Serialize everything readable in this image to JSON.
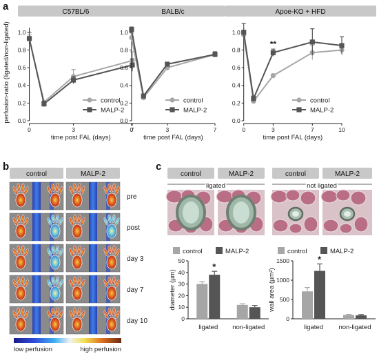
{
  "panel_a": {
    "letter": "a",
    "ylabel": "perfusion-ratio (ligated/non-ligated)",
    "xlabel": "time post FAL (days)",
    "legend": [
      "control",
      "MALP-2"
    ],
    "colors": {
      "control": "#a6a6a6",
      "malp": "#555555"
    }
  },
  "panel_b": {
    "letter": "b",
    "headers": [
      "control",
      "MALP-2"
    ],
    "rows": [
      "pre",
      "post",
      "day 3",
      "day 7",
      "day 10"
    ],
    "colorbar_low": "low perfusion",
    "colorbar_high": "high perfusion"
  },
  "panel_c": {
    "letter": "c",
    "headers": [
      "control",
      "MALP-2",
      "control",
      "MALP-2"
    ],
    "group_labels": [
      "ligated",
      "not ligated"
    ]
  },
  "chart_data": [
    {
      "type": "line",
      "title": "C57BL/6",
      "xlabel": "time post FAL (days)",
      "ylabel": "perfusion-ratio (ligated/non-ligated)",
      "x": [
        0,
        1,
        3,
        7
      ],
      "xticks": [
        0,
        3,
        7
      ],
      "xlim": [
        -0.4,
        7
      ],
      "ylim": [
        0,
        1.1
      ],
      "yticks": [
        "0.0",
        "0.2",
        "0.4",
        "0.6",
        "0.8",
        "1.0"
      ],
      "series": [
        {
          "name": "control",
          "values": [
            0.93,
            0.21,
            0.5,
            0.68
          ],
          "err": [
            0.04,
            0.02,
            0.08,
            0.1
          ]
        },
        {
          "name": "MALP-2",
          "values": [
            0.93,
            0.19,
            0.46,
            0.63
          ],
          "err": [
            0.07,
            0.03,
            0.04,
            0.07
          ]
        }
      ],
      "legend_position": "bottom-right"
    },
    {
      "type": "line",
      "title": "BALB/c",
      "xlabel": "time post FAL (days)",
      "x": [
        0,
        1,
        3,
        7
      ],
      "xticks": [
        0,
        3,
        7
      ],
      "xlim": [
        -0.4,
        7
      ],
      "ylim": [
        0,
        1.1
      ],
      "yticks": [
        "0.0",
        "0.2",
        "0.4",
        "0.6",
        "0.8",
        "1.0"
      ],
      "series": [
        {
          "name": "control",
          "values": [
            0.94,
            0.26,
            0.6,
            0.75
          ],
          "err": [
            0.05,
            0.02,
            0.03,
            0.03
          ]
        },
        {
          "name": "MALP-2",
          "values": [
            1.03,
            0.28,
            0.64,
            0.75
          ],
          "err": [
            0.03,
            0.02,
            0.02,
            0.03
          ]
        }
      ],
      "legend_position": "bottom-right"
    },
    {
      "type": "line",
      "title": "Apoe-KO + HFD",
      "xlabel": "time post FAL (days)",
      "x": [
        0,
        1,
        3,
        7,
        10
      ],
      "xticks": [
        0,
        3,
        7,
        10
      ],
      "xlim": [
        -0.4,
        10
      ],
      "ylim": [
        0,
        1.1
      ],
      "yticks": [
        "0.0",
        "0.2",
        "0.4",
        "0.6",
        "0.8",
        "1.0"
      ],
      "series": [
        {
          "name": "control",
          "values": [
            0.97,
            0.22,
            0.51,
            0.77,
            0.8
          ],
          "err": [
            0.05,
            0.02,
            0.02,
            0.08,
            0.05
          ]
        },
        {
          "name": "MALP-2",
          "values": [
            1.0,
            0.25,
            0.77,
            0.89,
            0.85
          ],
          "err": [
            0.1,
            0.03,
            0.04,
            0.15,
            0.1
          ]
        }
      ],
      "annotations": [
        {
          "x": 3,
          "text": "**"
        }
      ],
      "legend_position": "bottom-right"
    },
    {
      "type": "bar",
      "categories": [
        "ligated",
        "non-ligated"
      ],
      "ylabel": "diameter (µm)",
      "ylim": [
        0,
        50
      ],
      "yticks": [
        "0",
        "10",
        "20",
        "30",
        "40",
        "50"
      ],
      "series": [
        {
          "name": "control",
          "values": [
            30,
            12
          ],
          "err": [
            2,
            1
          ]
        },
        {
          "name": "MALP-2",
          "values": [
            38,
            10
          ],
          "err": [
            3,
            1.5
          ]
        }
      ],
      "annotations": [
        {
          "category": "ligated",
          "text": "*"
        }
      ],
      "legend_position": "top"
    },
    {
      "type": "bar",
      "categories": [
        "ligated",
        "non-ligated"
      ],
      "ylabel": "wall area (µm²)",
      "ylim": [
        0,
        1500
      ],
      "yticks": [
        "0",
        "500",
        "1000",
        "1500"
      ],
      "series": [
        {
          "name": "control",
          "values": [
            710,
            100
          ],
          "err": [
            100,
            15
          ]
        },
        {
          "name": "MALP-2",
          "values": [
            1240,
            90
          ],
          "err": [
            180,
            20
          ]
        }
      ],
      "annotations": [
        {
          "category": "ligated",
          "text": "*"
        }
      ],
      "legend_position": "top"
    }
  ]
}
